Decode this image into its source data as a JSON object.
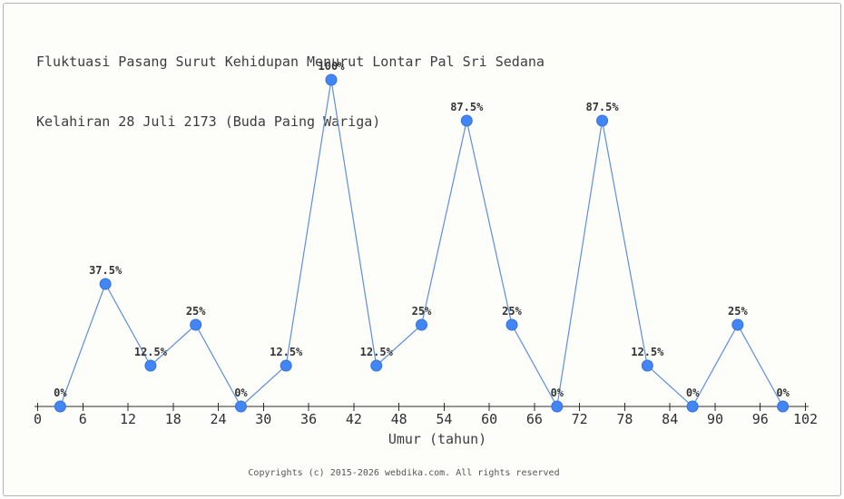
{
  "page": {
    "background_color": "#fdfdfa",
    "border_color": "#b3b3b3"
  },
  "chart_data": {
    "type": "line",
    "title_line1": "Fluktuasi Pasang Surut Kehidupan Menurut Lontar Pal Sri Sedana",
    "title_line2": "Kelahiran 28 Juli 2173 (Buda Paing Wariga)",
    "xlabel": "Umur (tahun)",
    "ylabel": "",
    "x": [
      3,
      9,
      15,
      21,
      27,
      33,
      39,
      45,
      51,
      57,
      63,
      69,
      75,
      81,
      87,
      93,
      99
    ],
    "values": [
      0,
      37.5,
      12.5,
      25,
      0,
      12.5,
      100,
      12.5,
      25,
      87.5,
      25,
      0,
      87.5,
      12.5,
      0,
      25,
      0
    ],
    "point_labels": [
      "0%",
      "37.5%",
      "12.5%",
      "25%",
      "0%",
      "12.5%",
      "100%",
      "12.5%",
      "25%",
      "87.5%",
      "25%",
      "0%",
      "87.5%",
      "12.5%",
      "0%",
      "25%",
      "0%"
    ],
    "x_ticks": [
      0,
      6,
      12,
      18,
      24,
      30,
      36,
      42,
      48,
      54,
      60,
      66,
      72,
      78,
      84,
      90,
      96,
      102
    ],
    "xlim": [
      0,
      102
    ],
    "ylim": [
      0,
      100
    ],
    "grid": false,
    "legend": null,
    "line_color": "#5e8fdb",
    "marker_color": "#4285f4",
    "marker_edge_color": "#3672d9",
    "axis_color": "#2e2e2e",
    "text_color": "#333333"
  },
  "footer": {
    "copyright": "Copyrights (c) 2015-2026 webdika.com. All rights reserved"
  }
}
